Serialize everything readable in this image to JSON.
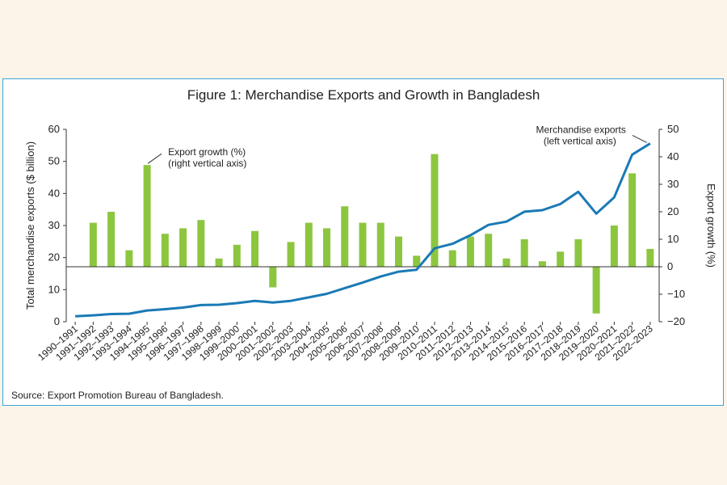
{
  "chart_data": {
    "type": "bar+line",
    "title": "Figure 1: Merchandise Exports and Growth in Bangladesh",
    "categories": [
      "1990–1991",
      "1991–1992",
      "1992–1993",
      "1993–1994",
      "1994–1995",
      "1995–1996",
      "1996–1997",
      "1997–1998",
      "1998–1999",
      "1999–2000",
      "2000–2001",
      "2001–2002",
      "2002–2003",
      "2003–2004",
      "2004–2005",
      "2005–2006",
      "2006–2007",
      "2007–2008",
      "2008–2009",
      "2009–2010",
      "2010–2011",
      "2011–2012",
      "2012–2013",
      "2013–2014",
      "2014–2015",
      "2015–2016",
      "2016–2017",
      "2017–2018",
      "2018–2019",
      "2019–2020",
      "2020–2021",
      "2021–2022",
      "2022–2023"
    ],
    "series": [
      {
        "name": "Merchandise exports",
        "kind": "line",
        "axis": "left",
        "color": "#1a7ab5",
        "values": [
          1.7,
          2.0,
          2.4,
          2.5,
          3.5,
          3.9,
          4.4,
          5.2,
          5.3,
          5.8,
          6.5,
          6.0,
          6.5,
          7.6,
          8.7,
          10.5,
          12.2,
          14.1,
          15.6,
          16.2,
          22.9,
          24.3,
          27.0,
          30.2,
          31.2,
          34.3,
          34.8,
          36.7,
          40.5,
          33.7,
          38.8,
          52.1,
          55.6
        ]
      },
      {
        "name": "Export growth (%)",
        "kind": "bar",
        "axis": "right",
        "color": "#8cc63f",
        "values": [
          null,
          16,
          20,
          6,
          37,
          12,
          14,
          17,
          3,
          8,
          13,
          -7.5,
          9,
          16,
          14,
          22,
          16,
          16,
          11,
          4,
          41,
          6,
          11,
          12,
          3,
          10,
          2,
          5.5,
          10,
          -17,
          15,
          34,
          6.5
        ]
      }
    ],
    "ylabel_left": "Total merchandise exports ($ billion)",
    "ylabel_right": "Export growth (%)",
    "ylim_left": [
      0,
      60
    ],
    "ylim_right": [
      -20,
      50
    ],
    "yticks_left": [
      "0",
      "10",
      "20",
      "30",
      "40",
      "50",
      "60"
    ],
    "yticks_right": [
      "−20",
      "−10",
      "0",
      "10",
      "20",
      "30",
      "40",
      "50"
    ],
    "annotations": {
      "bars": [
        "Export growth (%)",
        "(right vertical axis)"
      ],
      "line": [
        "Merchandise exports",
        "(left vertical axis)"
      ]
    },
    "grid": false,
    "source": "Source: Export Promotion Bureau of Bangladesh."
  }
}
